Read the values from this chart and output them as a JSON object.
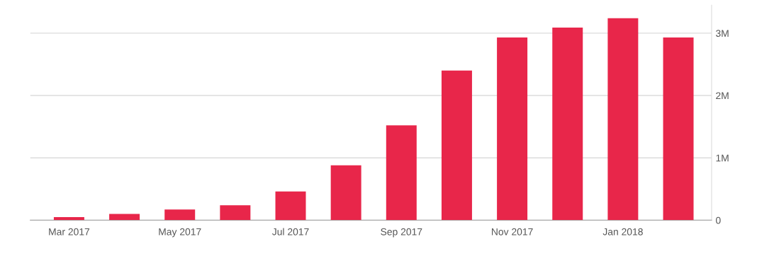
{
  "chart_data": {
    "type": "bar",
    "categories": [
      "Mar 2017",
      null,
      "May 2017",
      null,
      "Jul 2017",
      null,
      "Sep 2017",
      null,
      "Nov 2017",
      null,
      "Jan 2018",
      null
    ],
    "values": [
      0.05,
      0.1,
      0.17,
      0.24,
      0.46,
      0.88,
      1.52,
      2.4,
      2.93,
      3.09,
      3.24,
      2.93
    ],
    "color": "#e8264a",
    "ylim": [
      0,
      3.45
    ],
    "yticks": [
      0,
      {
        "value": 1,
        "label": "1M"
      },
      {
        "value": 2,
        "label": "2M"
      },
      {
        "value": 3,
        "label": "3M"
      }
    ],
    "grid": "y"
  }
}
